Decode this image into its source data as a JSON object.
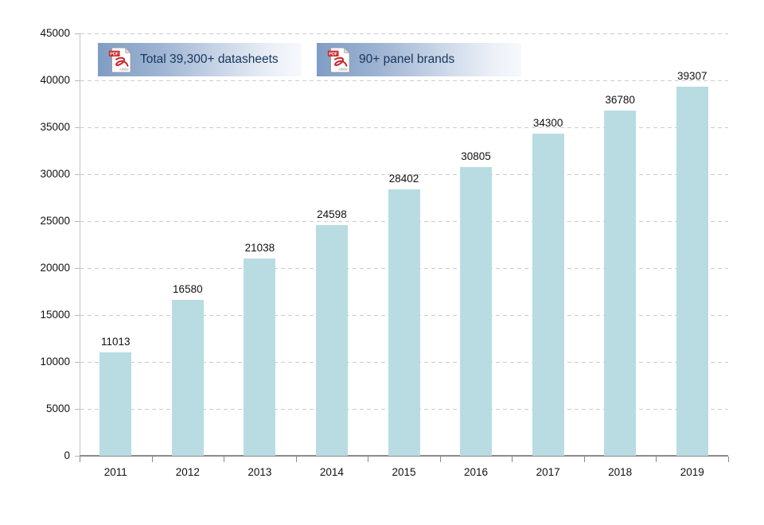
{
  "badges": [
    {
      "icon": "pdf-file-icon",
      "label": "Total 39,300+ datasheets"
    },
    {
      "icon": "pdf-file-icon",
      "label": "90+ panel brands"
    }
  ],
  "colors": {
    "bar": "#b9dce2",
    "badge_text": "#17375e",
    "badge_gradient_start": "#7f9dc4",
    "badge_gradient_end": "#f6f8fc",
    "gridline": "#cccccc",
    "x_axis": "#8a8a8a",
    "y_axis": "#c4c4c4",
    "label_text": "#111111",
    "pdf_icon_red": "#cc2229"
  },
  "chart_data": {
    "type": "bar",
    "title": "",
    "xlabel": "",
    "ylabel": "",
    "categories": [
      "2011",
      "2012",
      "2013",
      "2014",
      "2015",
      "2016",
      "2017",
      "2018",
      "2019"
    ],
    "values": [
      11013,
      16580,
      21038,
      24598,
      28402,
      30805,
      34300,
      36780,
      39307
    ],
    "data_labels": [
      "11013",
      "16580",
      "21038",
      "24598",
      "28402",
      "30805",
      "34300",
      "36780",
      "39307"
    ],
    "ylim": [
      0,
      45000
    ],
    "ytick_step": 5000,
    "ytick_labels": [
      "0",
      "5000",
      "10000",
      "15000",
      "20000",
      "25000",
      "30000",
      "35000",
      "40000",
      "45000"
    ],
    "grid": "horizontal-dashed",
    "legend": "none"
  }
}
